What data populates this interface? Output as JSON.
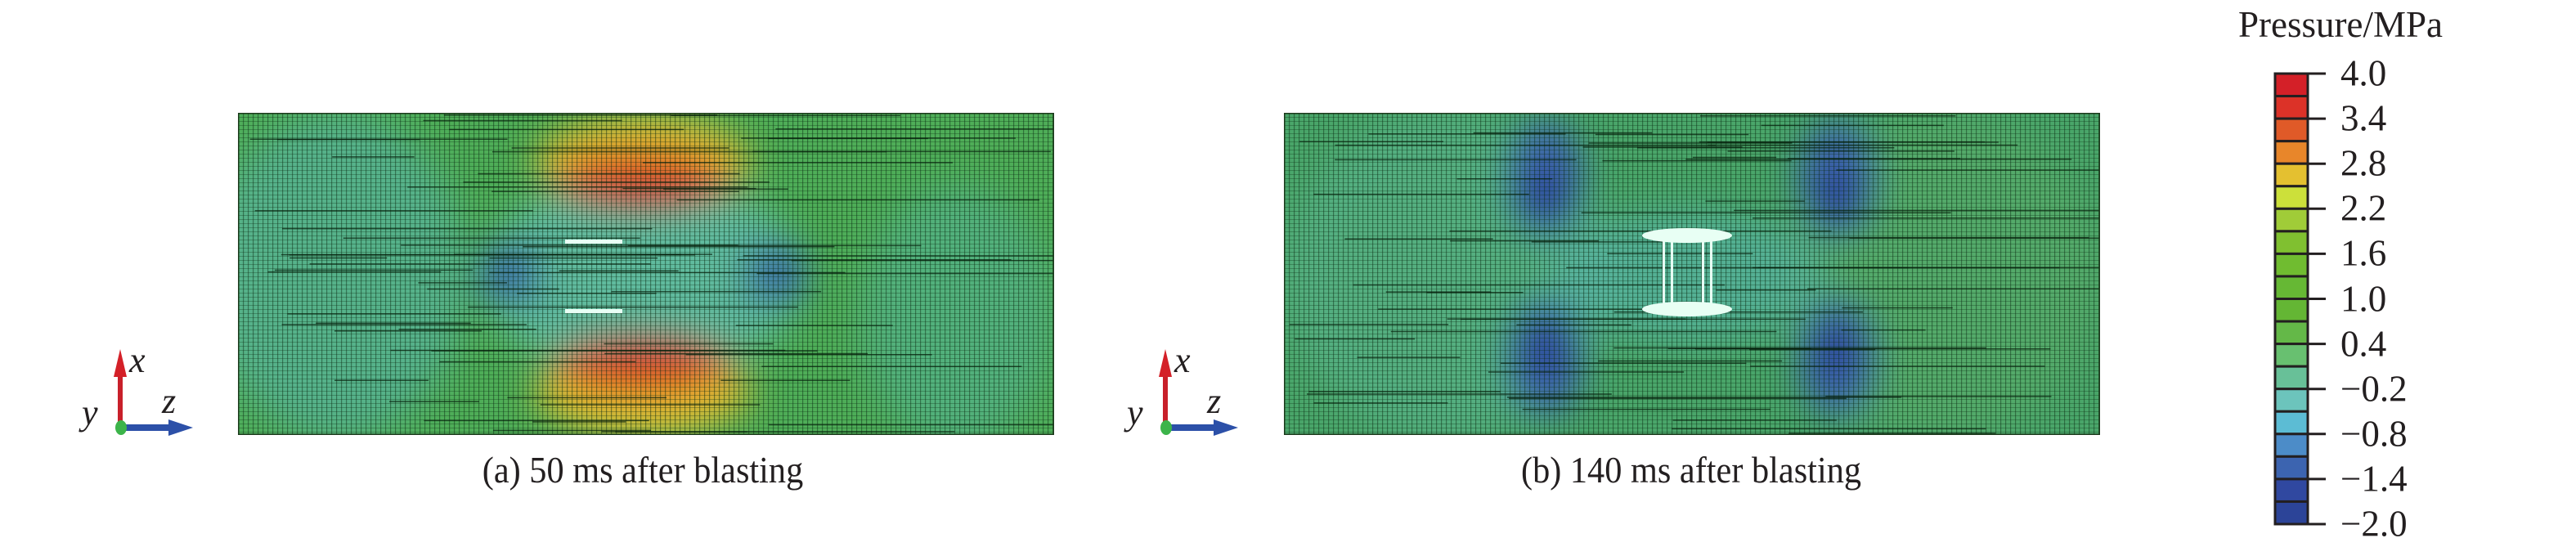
{
  "panels": [
    {
      "id": "a",
      "caption": "(a) 50 ms after blasting"
    },
    {
      "id": "b",
      "caption": "(b) 140 ms after blasting"
    }
  ],
  "axes_triad": {
    "x_label": "x",
    "y_label": "y",
    "z_label": "z",
    "x_color": "#d42028",
    "z_color": "#2c50a8",
    "y_color": "#3cb44a"
  },
  "chart_data": {
    "type": "heatmap",
    "colorbar": {
      "title": "Pressure/MPa",
      "range": [
        -2.0,
        4.0
      ],
      "tick_labels": [
        "4.0",
        "3.4",
        "2.8",
        "2.2",
        "1.6",
        "1.0",
        "0.4",
        "−0.2",
        "−0.8",
        "−1.4",
        "−2.0"
      ],
      "colors_top_to_bottom": [
        "#d42028",
        "#dc3228",
        "#e05a28",
        "#e8862a",
        "#e4c030",
        "#cce03a",
        "#a0cc38",
        "#80c030",
        "#70bc30",
        "#66b834",
        "#64b634",
        "#64b848",
        "#68c070",
        "#68c098",
        "#6cc4bc",
        "#5cbcd4",
        "#4c8cc8",
        "#3c64b0",
        "#3048a0",
        "#2c4498"
      ]
    }
  }
}
